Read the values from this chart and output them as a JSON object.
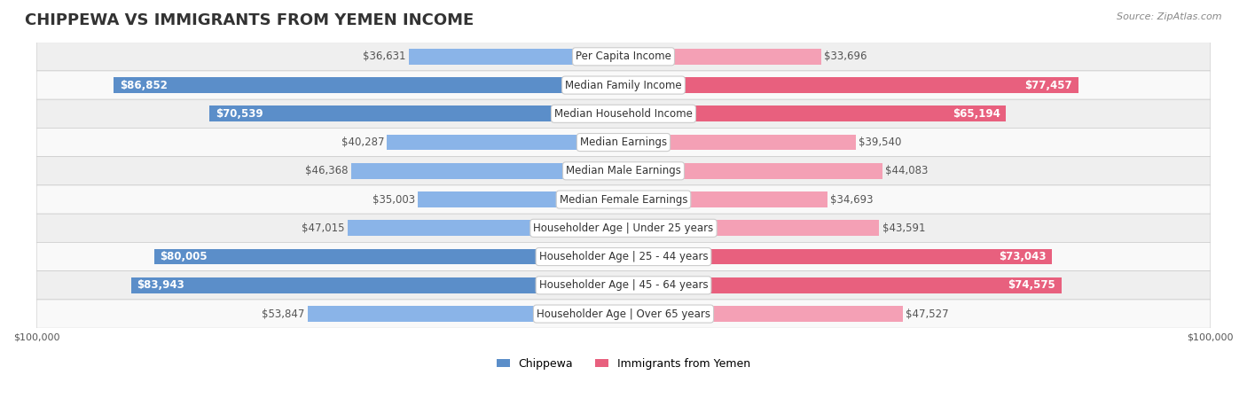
{
  "title": "CHIPPEWA VS IMMIGRANTS FROM YEMEN INCOME",
  "source": "Source: ZipAtlas.com",
  "categories": [
    "Per Capita Income",
    "Median Family Income",
    "Median Household Income",
    "Median Earnings",
    "Median Male Earnings",
    "Median Female Earnings",
    "Householder Age | Under 25 years",
    "Householder Age | 25 - 44 years",
    "Householder Age | 45 - 64 years",
    "Householder Age | Over 65 years"
  ],
  "chippewa_values": [
    36631,
    86852,
    70539,
    40287,
    46368,
    35003,
    47015,
    80005,
    83943,
    53847
  ],
  "yemen_values": [
    33696,
    77457,
    65194,
    39540,
    44083,
    34693,
    43591,
    73043,
    74575,
    47527
  ],
  "chippewa_labels": [
    "$36,631",
    "$86,852",
    "$70,539",
    "$40,287",
    "$46,368",
    "$35,003",
    "$47,015",
    "$80,005",
    "$83,943",
    "$53,847"
  ],
  "yemen_labels": [
    "$33,696",
    "$77,457",
    "$65,194",
    "$39,540",
    "$44,083",
    "$34,693",
    "$43,591",
    "$73,043",
    "$74,575",
    "$47,527"
  ],
  "chippewa_color": "#8ab4e8",
  "chippewa_color_dark": "#5b8ec9",
  "yemen_color": "#f4a0b5",
  "yemen_color_dark": "#e8607e",
  "max_value": 100000,
  "background_color": "#ffffff",
  "row_bg_light": "#f5f5f5",
  "row_bg_white": "#ffffff",
  "title_fontsize": 13,
  "label_fontsize": 8.5,
  "category_fontsize": 8.5,
  "legend_fontsize": 9,
  "source_fontsize": 8
}
